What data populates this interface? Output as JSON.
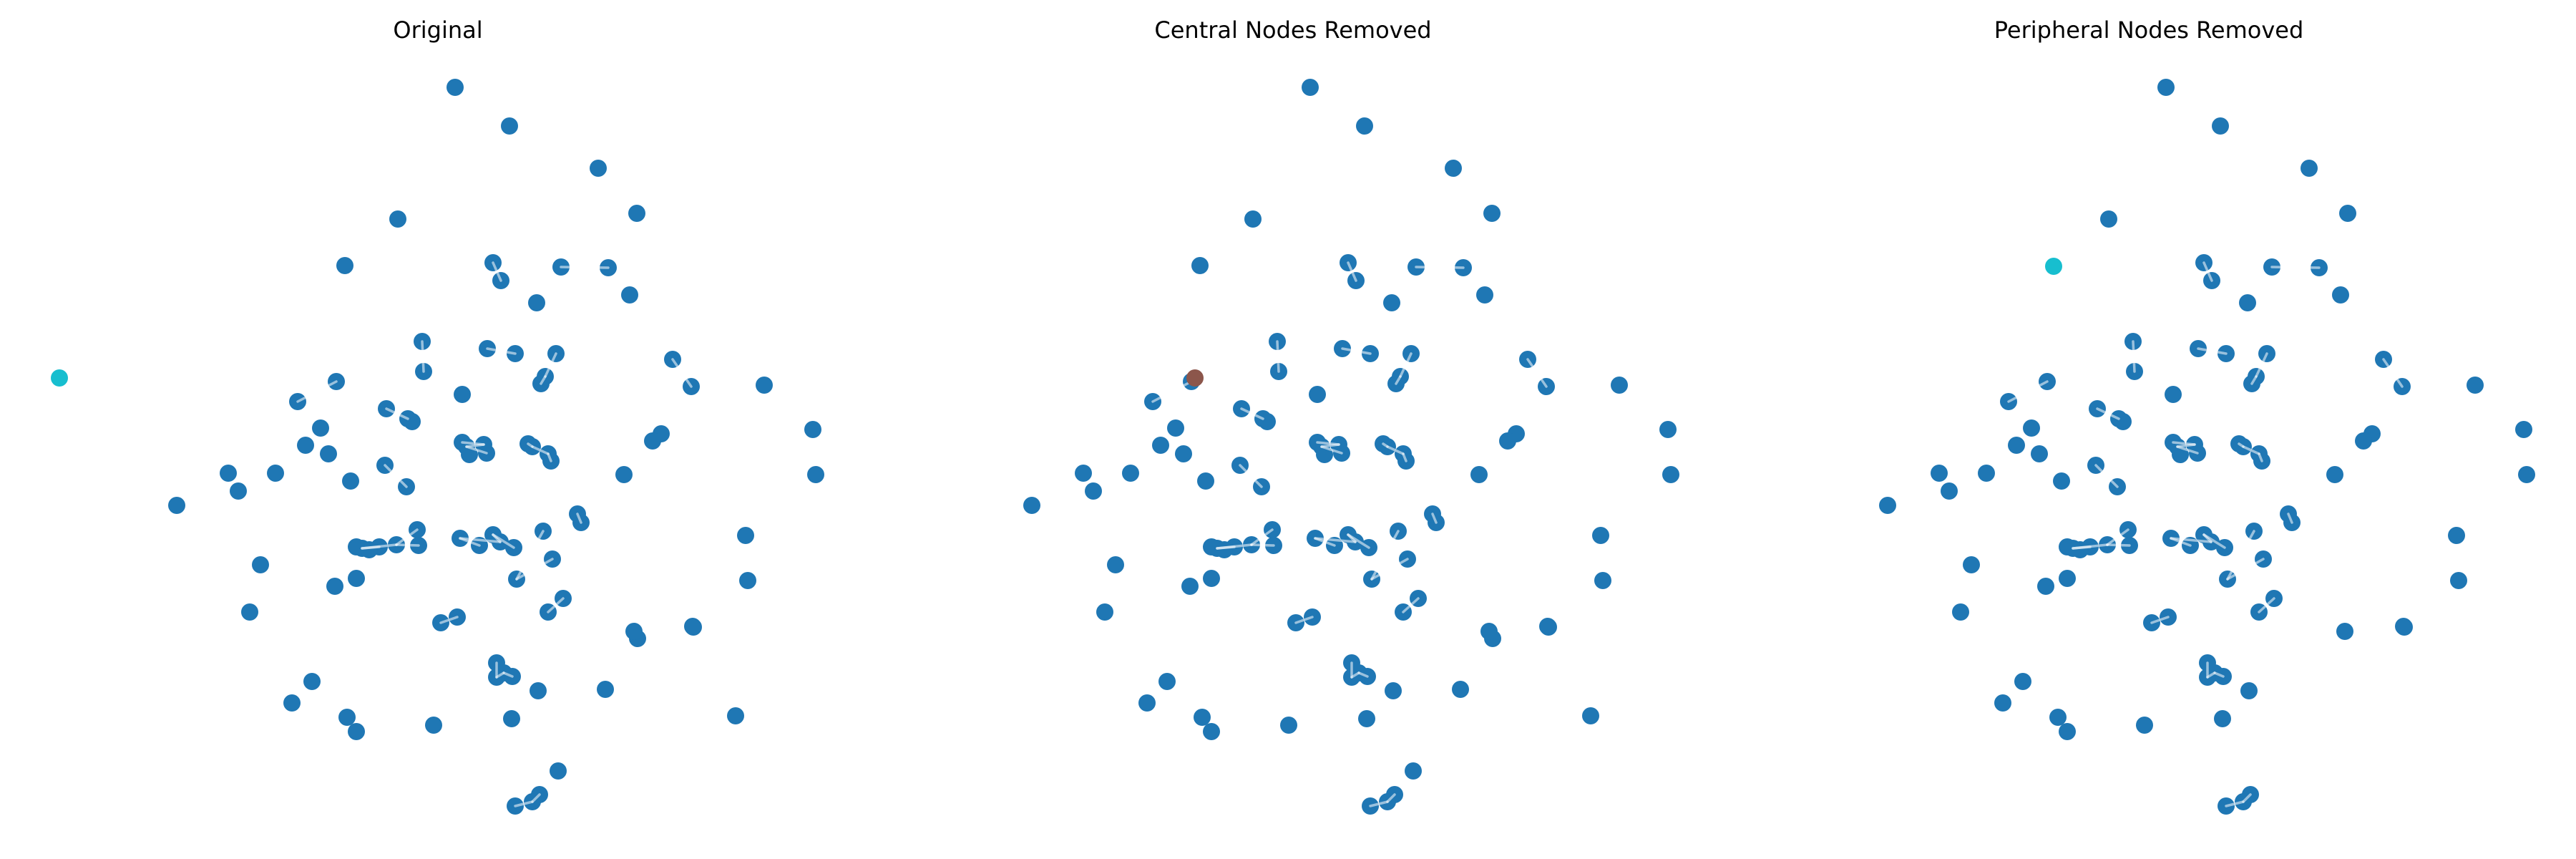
{
  "figure": {
    "panels": [
      {
        "title": "Original",
        "removed_node_color": "#17becf",
        "isolated_node": "left",
        "missing": []
      },
      {
        "title": "Central Nodes Removed",
        "removed_node_color": "#8c564b",
        "isolated_node": "right",
        "missing": []
      },
      {
        "title": "Peripheral Nodes Removed",
        "removed_node_color": "#17becf",
        "isolated_node": "upper-left",
        "missing": [
          5,
          81,
          82,
          95,
          96
        ]
      }
    ],
    "colors": {
      "node": "#1f77b4",
      "highlight_cyan": "#17becf",
      "highlight_brown": "#8c564b",
      "edge": "#ffffff",
      "background": "#ffffff"
    }
  }
}
